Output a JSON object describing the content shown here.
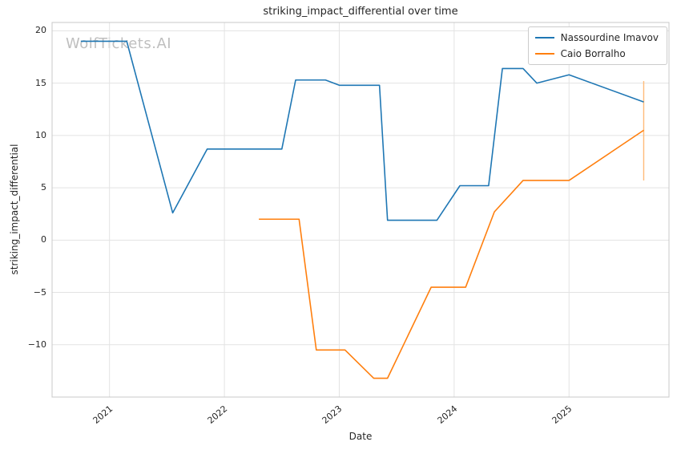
{
  "watermark": "WolfTickets.AI",
  "chart_data": {
    "type": "line",
    "title": "striking_impact_differential over time",
    "xlabel": "Date",
    "ylabel": "striking_impact_differential",
    "xlim": [
      2020.5,
      2025.87
    ],
    "ylim": [
      -15.0,
      20.8
    ],
    "grid": true,
    "legend_position": "upper right",
    "xticks": [
      2021,
      2022,
      2023,
      2024,
      2025
    ],
    "xtick_labels": [
      "2021",
      "2022",
      "2023",
      "2024",
      "2025"
    ],
    "yticks": [
      -10,
      -5,
      0,
      5,
      10,
      15,
      20
    ],
    "ytick_labels": [
      "−10",
      "−5",
      "0",
      "5",
      "10",
      "15",
      "20"
    ],
    "series": [
      {
        "name": "Nassourdine Imavov",
        "color": "#1f77b4",
        "x": [
          2020.75,
          2021.15,
          2021.55,
          2021.85,
          2022.5,
          2022.62,
          2022.88,
          2023.0,
          2023.35,
          2023.42,
          2023.85,
          2024.05,
          2024.3,
          2024.42,
          2024.6,
          2024.72,
          2025.0,
          2025.65
        ],
        "y": [
          19.0,
          19.0,
          2.6,
          8.7,
          8.7,
          15.3,
          15.3,
          14.8,
          14.8,
          1.9,
          1.9,
          5.2,
          5.2,
          16.4,
          16.4,
          15.0,
          15.8,
          13.2
        ]
      },
      {
        "name": "Caio Borralho",
        "color": "#ff7f0e",
        "x": [
          2022.3,
          2022.65,
          2022.8,
          2023.05,
          2023.3,
          2023.42,
          2023.8,
          2024.1,
          2024.35,
          2024.6,
          2025.0,
          2025.65
        ],
        "y": [
          2.0,
          2.0,
          -10.5,
          -10.5,
          -13.2,
          -13.2,
          -4.5,
          -4.5,
          2.7,
          5.7,
          5.7,
          10.5
        ]
      }
    ],
    "annotations": [
      {
        "type": "vertical-segment",
        "x": 2025.65,
        "y1": 5.7,
        "y2": 15.2,
        "color": "#ffbb78"
      }
    ],
    "style": {
      "grid_color": "#e3e3e3",
      "border_color": "#c8c8c8",
      "line_width": 1.6
    }
  }
}
